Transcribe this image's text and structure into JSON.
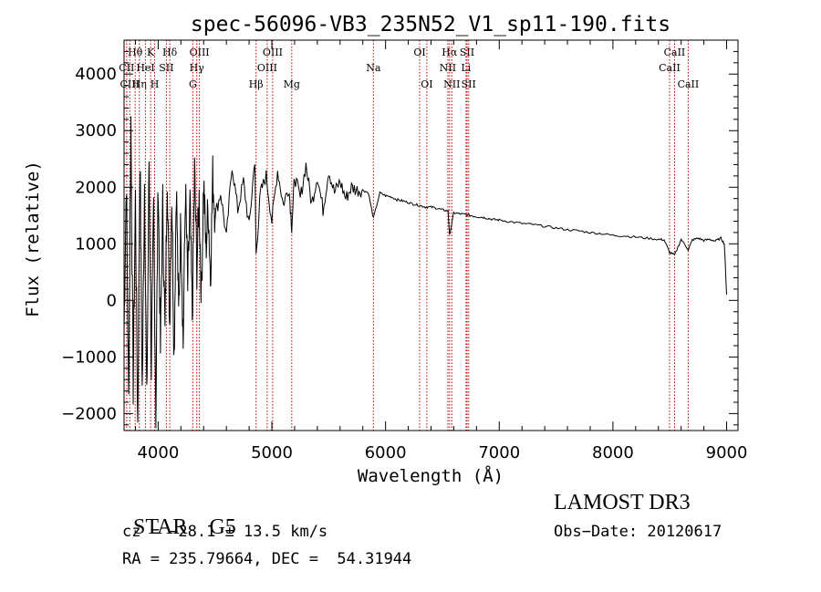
{
  "chart_data": {
    "type": "line",
    "title": "spec-56096-VB3_235N52_V1_sp11-190.fits",
    "xlabel": "Wavelength (Å)",
    "ylabel": "Flux (relative)",
    "xlim": [
      3700,
      9100
    ],
    "ylim": [
      -2300,
      4600
    ],
    "x_ticks": [
      4000,
      5000,
      6000,
      7000,
      8000,
      9000
    ],
    "y_ticks": [
      -2000,
      -1000,
      0,
      1000,
      2000,
      3000,
      4000
    ],
    "grid": false,
    "series": [
      {
        "name": "spectrum",
        "x": [
          3700,
          3720,
          3740,
          3760,
          3780,
          3800,
          3820,
          3840,
          3860,
          3880,
          3900,
          3920,
          3940,
          3960,
          3980,
          4000,
          4020,
          4040,
          4060,
          4080,
          4100,
          4120,
          4140,
          4160,
          4180,
          4200,
          4220,
          4240,
          4260,
          4280,
          4300,
          4320,
          4340,
          4360,
          4380,
          4400,
          4420,
          4440,
          4460,
          4480,
          4500,
          4550,
          4600,
          4650,
          4700,
          4750,
          4800,
          4850,
          4861,
          4900,
          4950,
          5000,
          5050,
          5100,
          5150,
          5175,
          5200,
          5250,
          5300,
          5350,
          5400,
          5450,
          5500,
          5550,
          5600,
          5650,
          5700,
          5750,
          5800,
          5850,
          5893,
          5950,
          6000,
          6050,
          6100,
          6150,
          6200,
          6250,
          6300,
          6350,
          6400,
          6450,
          6500,
          6550,
          6563,
          6600,
          6650,
          6700,
          6750,
          6800,
          6850,
          6900,
          6950,
          7000,
          7100,
          7200,
          7300,
          7400,
          7500,
          7600,
          7700,
          7800,
          7900,
          8000,
          8100,
          8200,
          8300,
          8400,
          8450,
          8498,
          8542,
          8600,
          8662,
          8700,
          8750,
          8800,
          8850,
          8900,
          8950,
          8980,
          9000
        ],
        "values": [
          -600,
          2200,
          -1800,
          3200,
          -1500,
          1800,
          -2200,
          2600,
          -1600,
          2100,
          -1900,
          2500,
          -1200,
          1600,
          -2000,
          2200,
          -900,
          1700,
          -600,
          2300,
          -400,
          1900,
          -1000,
          2100,
          -300,
          1500,
          -800,
          2000,
          200,
          1700,
          -300,
          2300,
          600,
          1800,
          100,
          2100,
          900,
          1700,
          400,
          2200,
          1500,
          1900,
          1100,
          2400,
          1600,
          2100,
          1300,
          2500,
          800,
          1900,
          2200,
          1400,
          2300,
          1700,
          2000,
          1300,
          2200,
          1800,
          2400,
          1700,
          2200,
          1600,
          2300,
          1900,
          2100,
          1800,
          2000,
          1950,
          1950,
          1900,
          1450,
          1900,
          1850,
          1830,
          1780,
          1760,
          1730,
          1700,
          1680,
          1650,
          1650,
          1630,
          1600,
          1580,
          1150,
          1550,
          1530,
          1520,
          1500,
          1480,
          1470,
          1450,
          1430,
          1420,
          1390,
          1360,
          1340,
          1310,
          1280,
          1250,
          1230,
          1200,
          1180,
          1150,
          1140,
          1120,
          1100,
          1080,
          1070,
          850,
          800,
          1080,
          900,
          1070,
          1100,
          1060,
          1080,
          1050,
          1100,
          1000,
          100
        ]
      }
    ],
    "lines": [
      {
        "label": "Hθ",
        "x": 3798,
        "row": 0
      },
      {
        "label": "CII",
        "x": 3723,
        "row": 1
      },
      {
        "label": "CIII",
        "x": 3750,
        "row": 2
      },
      {
        "label": "Hη",
        "x": 3835,
        "row": 2
      },
      {
        "label": "HeI",
        "x": 3889,
        "row": 1
      },
      {
        "label": "K",
        "x": 3934,
        "row": 0
      },
      {
        "label": "H",
        "x": 3969,
        "row": 2
      },
      {
        "label": "SII",
        "x": 4072,
        "row": 1
      },
      {
        "label": "Hδ",
        "x": 4102,
        "row": 0
      },
      {
        "label": "OIII",
        "x": 4363,
        "row": 0
      },
      {
        "label": "Hγ",
        "x": 4340,
        "row": 1
      },
      {
        "label": "G",
        "x": 4305,
        "row": 2
      },
      {
        "label": "Hβ",
        "x": 4861,
        "row": 2
      },
      {
        "label": "OIII",
        "x": 5007,
        "row": 0
      },
      {
        "label": "OIII",
        "x": 4959,
        "row": 1
      },
      {
        "label": "Mg",
        "x": 5175,
        "row": 2
      },
      {
        "label": "Na",
        "x": 5893,
        "row": 1
      },
      {
        "label": "OI",
        "x": 6300,
        "row": 0
      },
      {
        "label": "OI",
        "x": 6363,
        "row": 2
      },
      {
        "label": "Hα",
        "x": 6563,
        "row": 0
      },
      {
        "label": "NII",
        "x": 6548,
        "row": 1
      },
      {
        "label": "NII",
        "x": 6583,
        "row": 2
      },
      {
        "label": "SII",
        "x": 6717,
        "row": 0
      },
      {
        "label": "Li",
        "x": 6708,
        "row": 1
      },
      {
        "label": "SII",
        "x": 6731,
        "row": 2
      },
      {
        "label": "CaII",
        "x": 8542,
        "row": 0
      },
      {
        "label": "CaII",
        "x": 8498,
        "row": 1
      },
      {
        "label": "CaII",
        "x": 8662,
        "row": 2
      }
    ]
  },
  "footer": {
    "class": "STAR",
    "subclass": "G5",
    "survey": "LAMOST DR3",
    "cz": "cz = −28.1 ± 13.5 km/s",
    "obs_date": "Obs−Date: 20120617",
    "radec": "RA = 235.79664, DEC =  54.31944"
  }
}
